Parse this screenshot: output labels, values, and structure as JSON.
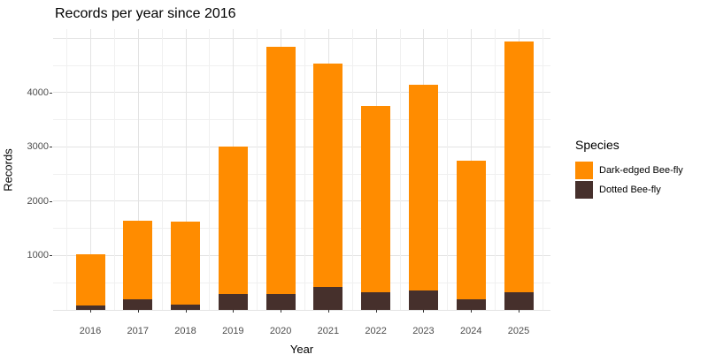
{
  "title": "Records per year since 2016",
  "axes": {
    "x_label": "Year",
    "y_label": "Records",
    "y_tick_labels": [
      "1000",
      "2000",
      "3000",
      "4000"
    ],
    "y_tick_values": [
      1000,
      2000,
      3000,
      4000
    ]
  },
  "legend": {
    "title": "Species",
    "items": [
      {
        "label": "Dark-edged Bee-fly",
        "color": "#FF8C00"
      },
      {
        "label": "Dotted Bee-fly",
        "color": "#46302C"
      }
    ]
  },
  "chart_data": {
    "type": "bar",
    "stacked": true,
    "title": "Records per year since 2016",
    "xlabel": "Year",
    "ylabel": "Records",
    "categories": [
      "2016",
      "2017",
      "2018",
      "2019",
      "2020",
      "2021",
      "2022",
      "2023",
      "2024",
      "2025"
    ],
    "series": [
      {
        "name": "Dotted Bee-fly",
        "color": "#46302C",
        "stack_order": "bottom",
        "values": [
          80,
          190,
          100,
          300,
          290,
          430,
          330,
          350,
          190,
          320
        ]
      },
      {
        "name": "Dark-edged Bee-fly",
        "color": "#FF8C00",
        "stack_order": "top",
        "values": [
          950,
          1460,
          1530,
          2710,
          4560,
          4100,
          3430,
          3790,
          2550,
          4620
        ]
      }
    ],
    "stacked_totals": [
      1030,
      1650,
      1630,
      3010,
      4850,
      4530,
      3760,
      4140,
      2740,
      4940
    ],
    "ylim": [
      0,
      5170
    ],
    "y_major_gridlines": [
      0,
      1000,
      2000,
      3000,
      4000,
      5000
    ],
    "y_minor_gridlines": [
      500,
      1500,
      2500,
      3500,
      4500
    ],
    "grid": true,
    "legend_position": "right",
    "background": "#FFFFFF"
  }
}
